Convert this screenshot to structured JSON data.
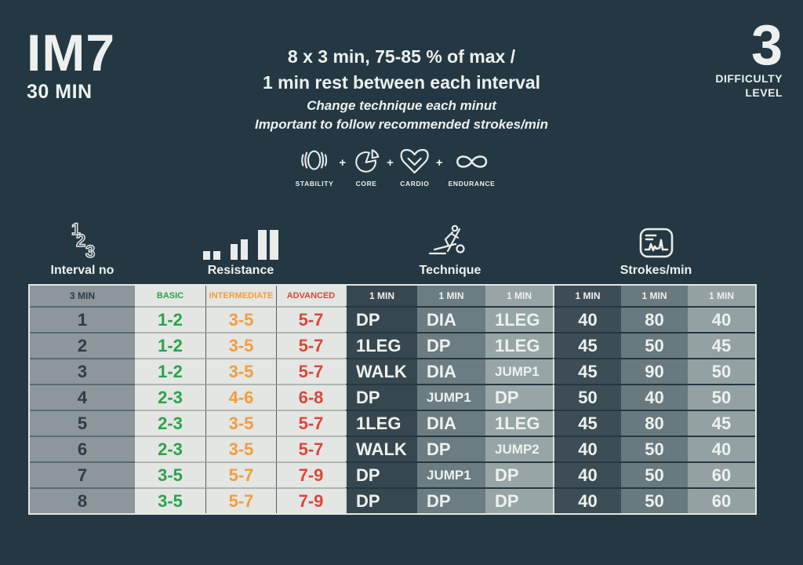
{
  "header": {
    "program_code": "IM7",
    "duration": "30 MIN",
    "summary_line1": "8 x 3 min, 75-85 % of max /",
    "summary_line2": "1 min rest between each interval",
    "note_line1": "Change technique each minut",
    "note_line2": "Important to follow recommended strokes/min",
    "difficulty_value": "3",
    "difficulty_label_line1": "DIFFICULTY",
    "difficulty_label_line2": "LEVEL"
  },
  "focus": {
    "separator": "+",
    "items": [
      {
        "icon": "stability-icon",
        "label": "STABILITY"
      },
      {
        "icon": "core-icon",
        "label": "CORE"
      },
      {
        "icon": "cardio-icon",
        "label": "CARDIO"
      },
      {
        "icon": "endurance-icon",
        "label": "ENDURANCE"
      }
    ]
  },
  "column_groups": {
    "interval_label": "Interval no",
    "resistance_label": "Resistance",
    "technique_label": "Technique",
    "strokes_label": "Strokes/min"
  },
  "table": {
    "interval_header": "3 MIN",
    "level_headers": [
      "BASIC",
      "INTERMEDIATE",
      "ADVANCED"
    ],
    "min_headers": [
      "1 MIN",
      "1 MIN",
      "1 MIN",
      "1 MIN",
      "1 MIN",
      "1 MIN"
    ],
    "rows": [
      {
        "no": "1",
        "levels": [
          "1-2",
          "3-5",
          "5-7"
        ],
        "technique": [
          "DP",
          "DIA",
          "1LEG"
        ],
        "strokes": [
          "40",
          "80",
          "40"
        ]
      },
      {
        "no": "2",
        "levels": [
          "1-2",
          "3-5",
          "5-7"
        ],
        "technique": [
          "1LEG",
          "DP",
          "1LEG"
        ],
        "strokes": [
          "45",
          "50",
          "45"
        ]
      },
      {
        "no": "3",
        "levels": [
          "1-2",
          "3-5",
          "5-7"
        ],
        "technique": [
          "WALK",
          "DIA",
          "JUMP1"
        ],
        "strokes": [
          "45",
          "90",
          "50"
        ]
      },
      {
        "no": "4",
        "levels": [
          "2-3",
          "4-6",
          "6-8"
        ],
        "technique": [
          "DP",
          "JUMP1",
          "DP"
        ],
        "strokes": [
          "50",
          "40",
          "50"
        ]
      },
      {
        "no": "5",
        "levels": [
          "2-3",
          "3-5",
          "5-7"
        ],
        "technique": [
          "1LEG",
          "DIA",
          "1LEG"
        ],
        "strokes": [
          "45",
          "80",
          "45"
        ]
      },
      {
        "no": "6",
        "levels": [
          "2-3",
          "3-5",
          "5-7"
        ],
        "technique": [
          "WALK",
          "DP",
          "JUMP2"
        ],
        "strokes": [
          "40",
          "50",
          "40"
        ]
      },
      {
        "no": "7",
        "levels": [
          "3-5",
          "5-7",
          "7-9"
        ],
        "technique": [
          "DP",
          "JUMP1",
          "DP"
        ],
        "strokes": [
          "40",
          "50",
          "60"
        ]
      },
      {
        "no": "8",
        "levels": [
          "3-5",
          "5-7",
          "7-9"
        ],
        "technique": [
          "DP",
          "DP",
          "DP"
        ],
        "strokes": [
          "40",
          "50",
          "60"
        ]
      }
    ]
  },
  "colors": {
    "background": "#243843",
    "text_light": "#edf0ee",
    "basic_green": "#2aa34c",
    "intermediate_orange": "#f39c3f",
    "advanced_red": "#dd453c",
    "light_cell": "#e3e6e2",
    "interval_cell": "#8c969b",
    "technique_col1": "#37474f",
    "technique_col2": "#6b7c82",
    "technique_col3": "#97a5a6",
    "strokes_col1": "#3c4d56",
    "strokes_col2": "#68797f",
    "strokes_col3": "#93a1a3"
  }
}
